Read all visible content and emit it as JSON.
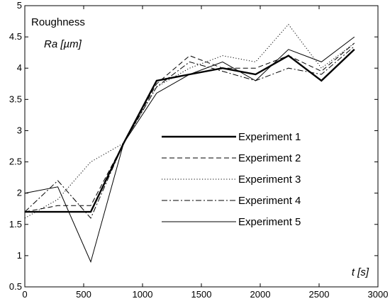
{
  "chart_data": {
    "type": "line",
    "title": "",
    "annotations": {
      "y_title": "Roughness",
      "y_unit": "Ra [µm]",
      "x_title": "t [s]"
    },
    "xlim": [
      0,
      3000
    ],
    "ylim": [
      0.5,
      5
    ],
    "x_ticks": [
      0,
      500,
      1000,
      1500,
      2000,
      2500,
      3000
    ],
    "y_ticks": [
      0.5,
      1,
      1.5,
      2,
      2.5,
      3,
      3.5,
      4,
      4.5,
      5
    ],
    "x_tick_labels": [
      "0",
      "500",
      "1000",
      "1500",
      "2000",
      "2500",
      "3000"
    ],
    "y_tick_labels": [
      "0.5",
      "1",
      "1.5",
      "2",
      "2.5",
      "3",
      "3.5",
      "4",
      "4.5",
      "5"
    ],
    "grid": false,
    "legend_position": "center-right",
    "x": [
      0,
      280,
      560,
      840,
      1120,
      1400,
      1680,
      1960,
      2240,
      2520,
      2800
    ],
    "series": [
      {
        "name": "Experiment 1",
        "style": "solid-thick",
        "values": [
          1.7,
          1.7,
          1.7,
          2.8,
          3.8,
          3.9,
          4.0,
          3.9,
          4.2,
          3.8,
          4.3
        ]
      },
      {
        "name": "Experiment 2",
        "style": "dashed",
        "values": [
          1.7,
          1.8,
          1.8,
          2.8,
          3.75,
          4.2,
          4.0,
          4.0,
          4.2,
          3.95,
          4.4
        ]
      },
      {
        "name": "Experiment 3",
        "style": "dotted",
        "values": [
          1.6,
          1.9,
          2.5,
          2.8,
          3.7,
          4.0,
          4.2,
          4.1,
          4.7,
          4.0,
          4.4
        ]
      },
      {
        "name": "Experiment 4",
        "style": "dashdot",
        "values": [
          1.7,
          2.2,
          1.6,
          2.8,
          3.7,
          4.1,
          3.95,
          3.8,
          4.0,
          3.9,
          4.35
        ]
      },
      {
        "name": "Experiment 5",
        "style": "solid-thin",
        "values": [
          2.0,
          2.1,
          0.9,
          2.8,
          3.6,
          3.9,
          4.1,
          3.8,
          4.3,
          4.1,
          4.5
        ]
      }
    ]
  }
}
